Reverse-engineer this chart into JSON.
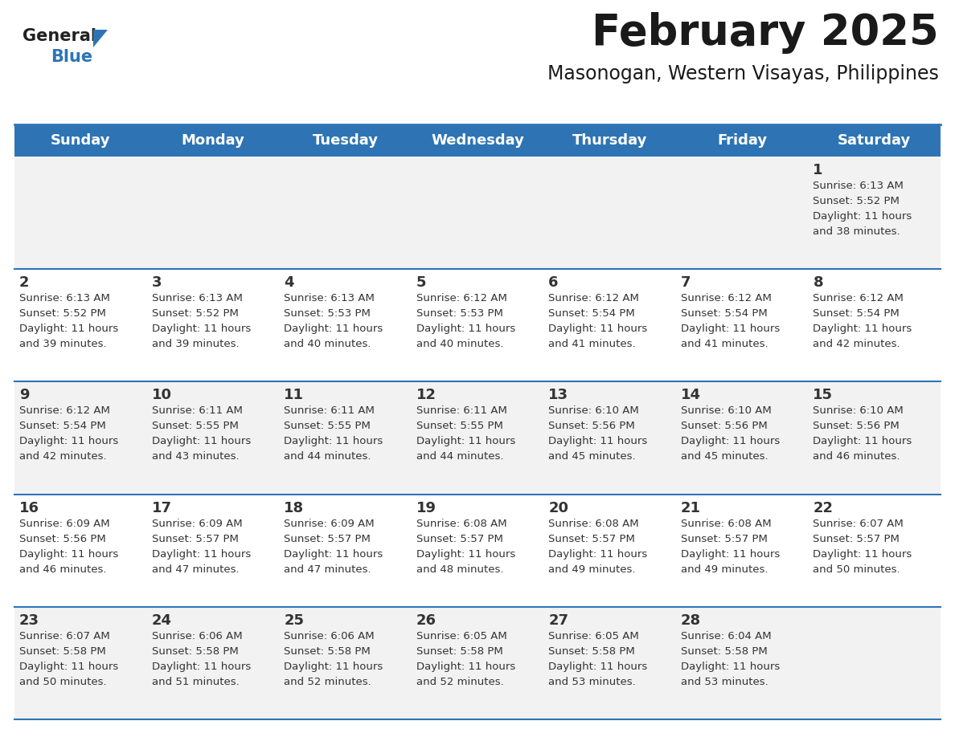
{
  "title": "February 2025",
  "subtitle": "Masonogan, Western Visayas, Philippines",
  "header_bg": "#2E74B5",
  "header_text_color": "#FFFFFF",
  "cell_bg_odd": "#F2F2F2",
  "cell_bg_even": "#FFFFFF",
  "separator_color": "#2E74B5",
  "text_color": "#333333",
  "days_of_week": [
    "Sunday",
    "Monday",
    "Tuesday",
    "Wednesday",
    "Thursday",
    "Friday",
    "Saturday"
  ],
  "weeks": [
    [
      {
        "day": "",
        "info": ""
      },
      {
        "day": "",
        "info": ""
      },
      {
        "day": "",
        "info": ""
      },
      {
        "day": "",
        "info": ""
      },
      {
        "day": "",
        "info": ""
      },
      {
        "day": "",
        "info": ""
      },
      {
        "day": "1",
        "info": "Sunrise: 6:13 AM\nSunset: 5:52 PM\nDaylight: 11 hours\nand 38 minutes."
      }
    ],
    [
      {
        "day": "2",
        "info": "Sunrise: 6:13 AM\nSunset: 5:52 PM\nDaylight: 11 hours\nand 39 minutes."
      },
      {
        "day": "3",
        "info": "Sunrise: 6:13 AM\nSunset: 5:52 PM\nDaylight: 11 hours\nand 39 minutes."
      },
      {
        "day": "4",
        "info": "Sunrise: 6:13 AM\nSunset: 5:53 PM\nDaylight: 11 hours\nand 40 minutes."
      },
      {
        "day": "5",
        "info": "Sunrise: 6:12 AM\nSunset: 5:53 PM\nDaylight: 11 hours\nand 40 minutes."
      },
      {
        "day": "6",
        "info": "Sunrise: 6:12 AM\nSunset: 5:54 PM\nDaylight: 11 hours\nand 41 minutes."
      },
      {
        "day": "7",
        "info": "Sunrise: 6:12 AM\nSunset: 5:54 PM\nDaylight: 11 hours\nand 41 minutes."
      },
      {
        "day": "8",
        "info": "Sunrise: 6:12 AM\nSunset: 5:54 PM\nDaylight: 11 hours\nand 42 minutes."
      }
    ],
    [
      {
        "day": "9",
        "info": "Sunrise: 6:12 AM\nSunset: 5:54 PM\nDaylight: 11 hours\nand 42 minutes."
      },
      {
        "day": "10",
        "info": "Sunrise: 6:11 AM\nSunset: 5:55 PM\nDaylight: 11 hours\nand 43 minutes."
      },
      {
        "day": "11",
        "info": "Sunrise: 6:11 AM\nSunset: 5:55 PM\nDaylight: 11 hours\nand 44 minutes."
      },
      {
        "day": "12",
        "info": "Sunrise: 6:11 AM\nSunset: 5:55 PM\nDaylight: 11 hours\nand 44 minutes."
      },
      {
        "day": "13",
        "info": "Sunrise: 6:10 AM\nSunset: 5:56 PM\nDaylight: 11 hours\nand 45 minutes."
      },
      {
        "day": "14",
        "info": "Sunrise: 6:10 AM\nSunset: 5:56 PM\nDaylight: 11 hours\nand 45 minutes."
      },
      {
        "day": "15",
        "info": "Sunrise: 6:10 AM\nSunset: 5:56 PM\nDaylight: 11 hours\nand 46 minutes."
      }
    ],
    [
      {
        "day": "16",
        "info": "Sunrise: 6:09 AM\nSunset: 5:56 PM\nDaylight: 11 hours\nand 46 minutes."
      },
      {
        "day": "17",
        "info": "Sunrise: 6:09 AM\nSunset: 5:57 PM\nDaylight: 11 hours\nand 47 minutes."
      },
      {
        "day": "18",
        "info": "Sunrise: 6:09 AM\nSunset: 5:57 PM\nDaylight: 11 hours\nand 47 minutes."
      },
      {
        "day": "19",
        "info": "Sunrise: 6:08 AM\nSunset: 5:57 PM\nDaylight: 11 hours\nand 48 minutes."
      },
      {
        "day": "20",
        "info": "Sunrise: 6:08 AM\nSunset: 5:57 PM\nDaylight: 11 hours\nand 49 minutes."
      },
      {
        "day": "21",
        "info": "Sunrise: 6:08 AM\nSunset: 5:57 PM\nDaylight: 11 hours\nand 49 minutes."
      },
      {
        "day": "22",
        "info": "Sunrise: 6:07 AM\nSunset: 5:57 PM\nDaylight: 11 hours\nand 50 minutes."
      }
    ],
    [
      {
        "day": "23",
        "info": "Sunrise: 6:07 AM\nSunset: 5:58 PM\nDaylight: 11 hours\nand 50 minutes."
      },
      {
        "day": "24",
        "info": "Sunrise: 6:06 AM\nSunset: 5:58 PM\nDaylight: 11 hours\nand 51 minutes."
      },
      {
        "day": "25",
        "info": "Sunrise: 6:06 AM\nSunset: 5:58 PM\nDaylight: 11 hours\nand 52 minutes."
      },
      {
        "day": "26",
        "info": "Sunrise: 6:05 AM\nSunset: 5:58 PM\nDaylight: 11 hours\nand 52 minutes."
      },
      {
        "day": "27",
        "info": "Sunrise: 6:05 AM\nSunset: 5:58 PM\nDaylight: 11 hours\nand 53 minutes."
      },
      {
        "day": "28",
        "info": "Sunrise: 6:04 AM\nSunset: 5:58 PM\nDaylight: 11 hours\nand 53 minutes."
      },
      {
        "day": "",
        "info": ""
      }
    ]
  ],
  "title_fontsize": 38,
  "subtitle_fontsize": 17,
  "day_number_fontsize": 13,
  "info_fontsize": 9.5,
  "header_fontsize": 13,
  "logo_general_fontsize": 15,
  "logo_blue_fontsize": 15
}
